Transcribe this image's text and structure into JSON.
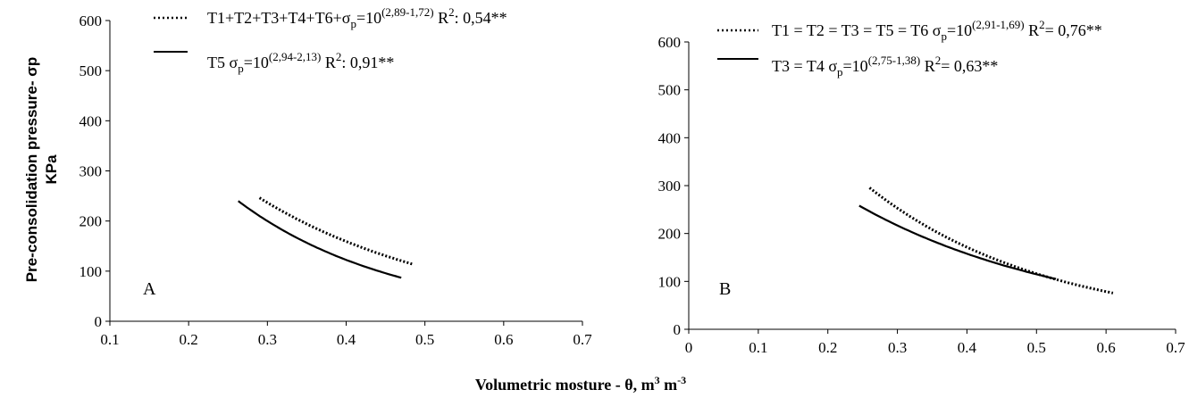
{
  "chart_data": [
    {
      "type": "line",
      "panel_label": "A",
      "x_ticks": [
        "0.1",
        "0.2",
        "0.3",
        "0.4",
        "0.5",
        "0.6",
        "0.7"
      ],
      "y_ticks": [
        "0",
        "100",
        "200",
        "300",
        "400",
        "500",
        "600"
      ],
      "xlim": [
        0.1,
        0.7
      ],
      "ylim": [
        0,
        600
      ],
      "series": [
        {
          "legend": {
            "main": "T1+T2+T3+T4+T6+σ",
            "sub": "p",
            "mid": "=10",
            "sup": "(2,89-1,72)",
            "tail": " R",
            "sup2": "2",
            "tail2": ": 0,54**"
          },
          "style": "dotted",
          "coef": [
            2.89,
            1.72
          ],
          "x_range": [
            0.29,
            0.486
          ]
        },
        {
          "legend": {
            "main": "T5 σ",
            "sub": "p",
            "mid": "=10",
            "sup": "(2,94-2,13)",
            "tail": " R",
            "sup2": "2",
            "tail2": ": 0,91**"
          },
          "style": "solid",
          "coef": [
            2.94,
            2.13
          ],
          "x_range": [
            0.263,
            0.47
          ]
        }
      ]
    },
    {
      "type": "line",
      "panel_label": "B",
      "x_ticks": [
        "0",
        "0.1",
        "0.2",
        "0.3",
        "0.4",
        "0.5",
        "0.6",
        "0.7"
      ],
      "y_ticks": [
        "0",
        "100",
        "200",
        "300",
        "400",
        "500",
        "600"
      ],
      "xlim": [
        0,
        0.7
      ],
      "ylim": [
        0,
        600
      ],
      "series": [
        {
          "legend": {
            "main": "T1 = T2 = T3 = T5 = T6 σ",
            "sub": "p",
            "mid": "=10",
            "sup": "(2,91-1,69)",
            "tail": " R",
            "sup2": "2",
            "tail2": "= 0,76**"
          },
          "style": "dotted",
          "coef": [
            2.91,
            1.69
          ],
          "x_range": [
            0.26,
            0.61
          ]
        },
        {
          "legend": {
            "main": "T3 = T4 σ",
            "sub": "p",
            "mid": "=10",
            "sup": "(2,75-1,38)",
            "tail": " R",
            "sup2": "2",
            "tail2": "= 0,63**"
          },
          "style": "solid",
          "coef": [
            2.75,
            1.38
          ],
          "x_range": [
            0.245,
            0.528
          ]
        }
      ]
    }
  ],
  "ylabel_line1": "Pre-consolidation pressure- σp",
  "ylabel_line2": "KPa",
  "xlabel": {
    "main": "Volumetric mosture - θ, m",
    "sup1": "3",
    "mid": " m",
    "sup2": "-3"
  }
}
